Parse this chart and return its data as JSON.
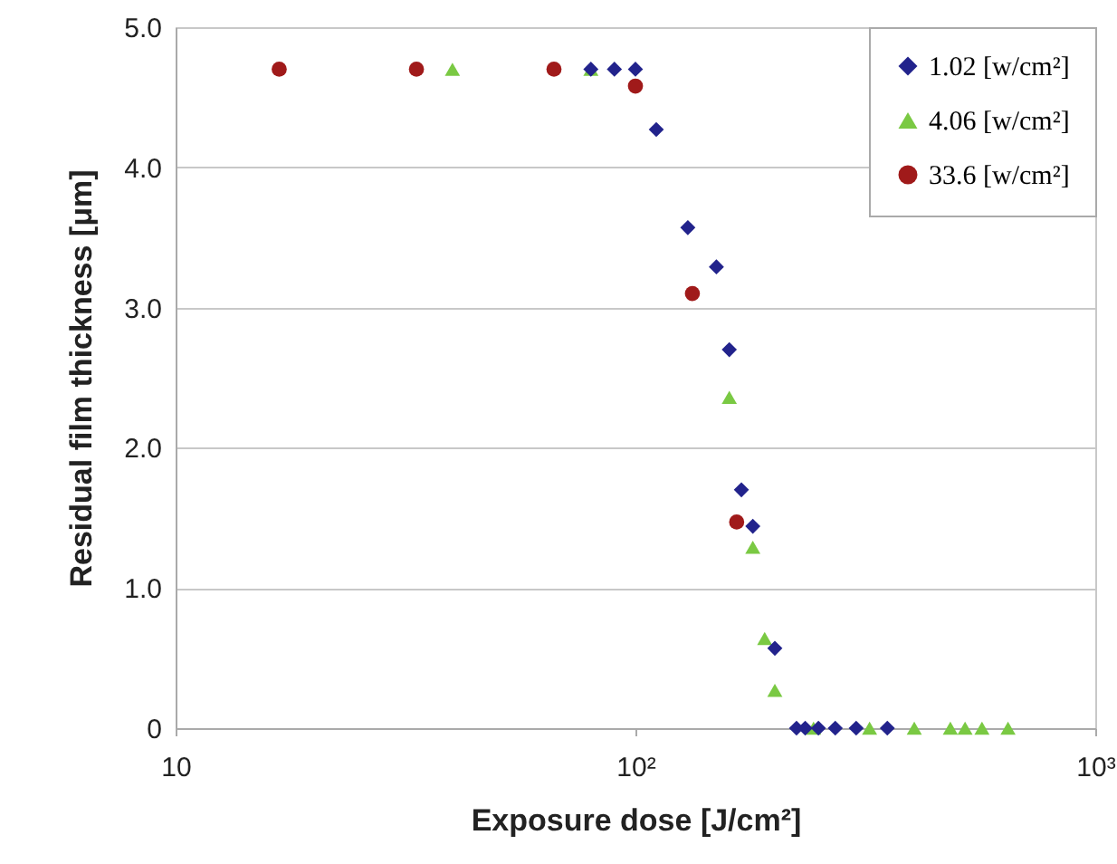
{
  "chart_data": {
    "type": "scatter",
    "xlabel": "Exposure dose [J/cm²]",
    "ylabel": "Residual film thickness [μm]",
    "log": "x",
    "grid": "y",
    "legend": "top right",
    "xlim": [
      10,
      1000
    ],
    "xticks": [
      10,
      {
        "value": 100,
        "label": "10²"
      },
      {
        "value": 1000,
        "label": "10³"
      }
    ],
    "ylim": [
      0,
      5
    ],
    "yticks": [
      0,
      {
        "value": 1,
        "label": "1.0"
      },
      {
        "value": 2,
        "label": "2.0"
      },
      {
        "value": 3,
        "label": "3.0"
      },
      {
        "value": 4,
        "label": "4.0"
      },
      {
        "value": 5,
        "label": "5.0"
      }
    ],
    "series": [
      {
        "name": "1.02 [w/cm²]",
        "color": "#22238c",
        "marker": "diamond",
        "x": [
          80,
          90,
          100,
          111,
          130,
          150,
          160,
          170,
          180,
          201,
          224,
          234,
          250,
          272,
          302,
          353
        ],
        "values": [
          4.7,
          4.7,
          4.7,
          4.27,
          3.57,
          3.29,
          2.7,
          1.7,
          1.44,
          0.57,
          0,
          0,
          0,
          0,
          0,
          0
        ]
      },
      {
        "name": "4.06 [w/cm²]",
        "color": "#7ac943",
        "marker": "triangle",
        "x": [
          40,
          80,
          160,
          180,
          191,
          201,
          244,
          323,
          404,
          484,
          521,
          567,
          646
        ],
        "values": [
          4.7,
          4.7,
          2.36,
          1.29,
          0.64,
          0.27,
          0,
          0,
          0,
          0,
          0,
          0,
          0
        ]
      },
      {
        "name": "33.6 [w/cm²]",
        "color": "#a01a1a",
        "marker": "circle",
        "x": [
          16.8,
          33.4,
          66.5,
          100,
          133,
          166
        ],
        "values": [
          4.7,
          4.7,
          4.7,
          4.58,
          3.1,
          1.47
        ]
      }
    ]
  }
}
